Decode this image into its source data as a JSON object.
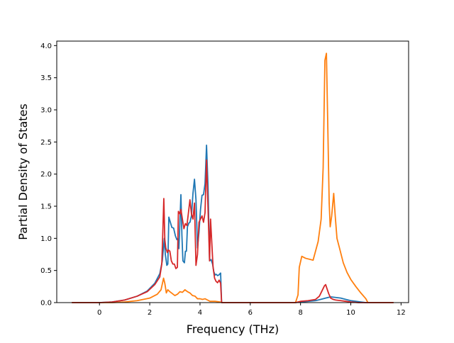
{
  "chart_data": {
    "type": "line",
    "title": "",
    "xlabel": "Frequency (THz)",
    "ylabel": "Partial Density of States",
    "xlim": [
      -1.7,
      12.3
    ],
    "ylim": [
      0.0,
      4.07
    ],
    "xticks": [
      0,
      2,
      4,
      6,
      8,
      10,
      12
    ],
    "xtick_labels": [
      "0",
      "2",
      "4",
      "6",
      "8",
      "10",
      "12"
    ],
    "yticks": [
      0.0,
      0.5,
      1.0,
      1.5,
      2.0,
      2.5,
      3.0,
      3.5,
      4.0
    ],
    "ytick_labels": [
      "0.0",
      "0.5",
      "1.0",
      "1.5",
      "2.0",
      "2.5",
      "3.0",
      "3.5",
      "4.0"
    ],
    "grid": false,
    "series": [
      {
        "color": "#1f77b4",
        "points": [
          [
            -1.1,
            0.0
          ],
          [
            0.0,
            0.0
          ],
          [
            0.5,
            0.01
          ],
          [
            1.0,
            0.04
          ],
          [
            1.5,
            0.1
          ],
          [
            1.9,
            0.18
          ],
          [
            2.2,
            0.3
          ],
          [
            2.4,
            0.45
          ],
          [
            2.5,
            0.65
          ],
          [
            2.58,
            1.0
          ],
          [
            2.62,
            0.75
          ],
          [
            2.68,
            0.58
          ],
          [
            2.72,
            0.6
          ],
          [
            2.76,
            1.33
          ],
          [
            2.82,
            1.25
          ],
          [
            2.88,
            1.17
          ],
          [
            2.95,
            1.16
          ],
          [
            3.02,
            1.04
          ],
          [
            3.08,
            0.98
          ],
          [
            3.12,
            1.0
          ],
          [
            3.16,
            0.84
          ],
          [
            3.2,
            1.25
          ],
          [
            3.24,
            1.68
          ],
          [
            3.28,
            1.05
          ],
          [
            3.32,
            0.65
          ],
          [
            3.38,
            0.62
          ],
          [
            3.42,
            0.8
          ],
          [
            3.46,
            0.8
          ],
          [
            3.5,
            1.18
          ],
          [
            3.56,
            1.24
          ],
          [
            3.6,
            1.25
          ],
          [
            3.66,
            1.35
          ],
          [
            3.72,
            1.7
          ],
          [
            3.78,
            1.92
          ],
          [
            3.84,
            1.6
          ],
          [
            3.9,
            0.85
          ],
          [
            3.96,
            1.1
          ],
          [
            4.02,
            1.45
          ],
          [
            4.08,
            1.67
          ],
          [
            4.14,
            1.68
          ],
          [
            4.2,
            1.85
          ],
          [
            4.26,
            2.45
          ],
          [
            4.32,
            1.8
          ],
          [
            4.38,
            0.65
          ],
          [
            4.44,
            0.67
          ],
          [
            4.5,
            0.6
          ],
          [
            4.55,
            0.48
          ],
          [
            4.6,
            0.43
          ],
          [
            4.65,
            0.44
          ],
          [
            4.7,
            0.42
          ],
          [
            4.75,
            0.43
          ],
          [
            4.82,
            0.46
          ],
          [
            4.86,
            0.0
          ],
          [
            6.0,
            0.0
          ],
          [
            7.8,
            0.0
          ],
          [
            8.0,
            0.01
          ],
          [
            8.3,
            0.02
          ],
          [
            8.6,
            0.03
          ],
          [
            8.8,
            0.05
          ],
          [
            9.0,
            0.07
          ],
          [
            9.2,
            0.09
          ],
          [
            9.4,
            0.08
          ],
          [
            9.6,
            0.07
          ],
          [
            9.8,
            0.05
          ],
          [
            10.0,
            0.03
          ],
          [
            10.2,
            0.02
          ],
          [
            10.4,
            0.01
          ],
          [
            10.6,
            0.0
          ],
          [
            11.7,
            0.0
          ]
        ]
      },
      {
        "color": "#ff7f0e",
        "points": [
          [
            -1.1,
            0.0
          ],
          [
            0.0,
            0.0
          ],
          [
            0.5,
            0.0
          ],
          [
            1.0,
            0.01
          ],
          [
            1.5,
            0.03
          ],
          [
            2.0,
            0.07
          ],
          [
            2.3,
            0.13
          ],
          [
            2.45,
            0.2
          ],
          [
            2.55,
            0.38
          ],
          [
            2.6,
            0.3
          ],
          [
            2.66,
            0.15
          ],
          [
            2.72,
            0.2
          ],
          [
            2.8,
            0.17
          ],
          [
            2.9,
            0.14
          ],
          [
            3.0,
            0.11
          ],
          [
            3.1,
            0.13
          ],
          [
            3.2,
            0.17
          ],
          [
            3.3,
            0.16
          ],
          [
            3.4,
            0.2
          ],
          [
            3.5,
            0.17
          ],
          [
            3.6,
            0.15
          ],
          [
            3.7,
            0.11
          ],
          [
            3.8,
            0.1
          ],
          [
            3.9,
            0.06
          ],
          [
            4.0,
            0.06
          ],
          [
            4.1,
            0.05
          ],
          [
            4.2,
            0.06
          ],
          [
            4.3,
            0.04
          ],
          [
            4.4,
            0.02
          ],
          [
            4.6,
            0.02
          ],
          [
            4.8,
            0.01
          ],
          [
            4.9,
            0.0
          ],
          [
            6.0,
            0.0
          ],
          [
            7.8,
            0.0
          ],
          [
            7.9,
            0.12
          ],
          [
            7.95,
            0.55
          ],
          [
            8.05,
            0.72
          ],
          [
            8.2,
            0.69
          ],
          [
            8.5,
            0.66
          ],
          [
            8.7,
            0.95
          ],
          [
            8.82,
            1.3
          ],
          [
            8.9,
            2.1
          ],
          [
            8.97,
            3.77
          ],
          [
            9.03,
            3.88
          ],
          [
            9.08,
            2.85
          ],
          [
            9.14,
            1.55
          ],
          [
            9.18,
            1.18
          ],
          [
            9.24,
            1.35
          ],
          [
            9.32,
            1.7
          ],
          [
            9.38,
            1.35
          ],
          [
            9.45,
            1.0
          ],
          [
            9.55,
            0.85
          ],
          [
            9.7,
            0.62
          ],
          [
            9.85,
            0.47
          ],
          [
            10.0,
            0.36
          ],
          [
            10.2,
            0.25
          ],
          [
            10.4,
            0.15
          ],
          [
            10.6,
            0.06
          ],
          [
            10.68,
            0.0
          ],
          [
            11.7,
            0.0
          ]
        ]
      },
      {
        "color": "#d62728",
        "points": [
          [
            -1.1,
            0.0
          ],
          [
            0.0,
            0.0
          ],
          [
            0.5,
            0.01
          ],
          [
            1.0,
            0.04
          ],
          [
            1.5,
            0.1
          ],
          [
            1.9,
            0.17
          ],
          [
            2.2,
            0.28
          ],
          [
            2.4,
            0.4
          ],
          [
            2.48,
            0.6
          ],
          [
            2.52,
            1.1
          ],
          [
            2.56,
            1.62
          ],
          [
            2.6,
            0.98
          ],
          [
            2.64,
            0.85
          ],
          [
            2.7,
            0.78
          ],
          [
            2.74,
            0.82
          ],
          [
            2.8,
            0.8
          ],
          [
            2.86,
            0.65
          ],
          [
            2.92,
            0.6
          ],
          [
            2.98,
            0.6
          ],
          [
            3.04,
            0.53
          ],
          [
            3.1,
            0.55
          ],
          [
            3.14,
            1.42
          ],
          [
            3.2,
            1.38
          ],
          [
            3.24,
            1.45
          ],
          [
            3.3,
            1.3
          ],
          [
            3.36,
            1.15
          ],
          [
            3.42,
            1.23
          ],
          [
            3.48,
            1.2
          ],
          [
            3.54,
            1.4
          ],
          [
            3.6,
            1.6
          ],
          [
            3.66,
            1.38
          ],
          [
            3.72,
            1.3
          ],
          [
            3.78,
            1.55
          ],
          [
            3.84,
            0.58
          ],
          [
            3.9,
            0.75
          ],
          [
            3.96,
            1.25
          ],
          [
            4.02,
            1.3
          ],
          [
            4.08,
            1.35
          ],
          [
            4.14,
            1.25
          ],
          [
            4.2,
            1.4
          ],
          [
            4.26,
            2.22
          ],
          [
            4.32,
            1.45
          ],
          [
            4.38,
            0.65
          ],
          [
            4.42,
            1.3
          ],
          [
            4.46,
            1.0
          ],
          [
            4.52,
            0.55
          ],
          [
            4.58,
            0.38
          ],
          [
            4.64,
            0.33
          ],
          [
            4.7,
            0.31
          ],
          [
            4.76,
            0.35
          ],
          [
            4.82,
            0.3
          ],
          [
            4.86,
            0.0
          ],
          [
            6.0,
            0.0
          ],
          [
            7.8,
            0.0
          ],
          [
            8.0,
            0.02
          ],
          [
            8.3,
            0.03
          ],
          [
            8.6,
            0.05
          ],
          [
            8.75,
            0.1
          ],
          [
            8.85,
            0.18
          ],
          [
            8.95,
            0.26
          ],
          [
            9.0,
            0.28
          ],
          [
            9.05,
            0.22
          ],
          [
            9.12,
            0.14
          ],
          [
            9.2,
            0.07
          ],
          [
            9.3,
            0.05
          ],
          [
            9.4,
            0.04
          ],
          [
            9.6,
            0.03
          ],
          [
            9.8,
            0.02
          ],
          [
            10.0,
            0.01
          ],
          [
            10.3,
            0.0
          ],
          [
            11.7,
            0.0
          ]
        ]
      }
    ]
  }
}
